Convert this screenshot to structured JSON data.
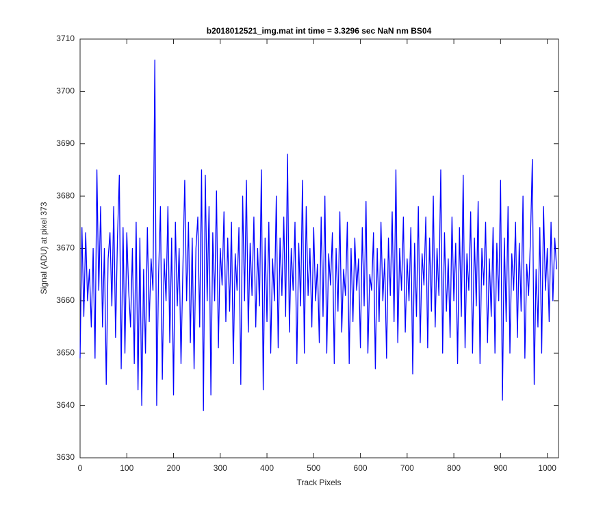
{
  "chart_data": {
    "type": "line",
    "title": "b2018012521_img.mat int time = 3.3296 sec  NaN nm BS04",
    "xlabel": "Track Pixels",
    "ylabel": "Signal (ADU) at pixel 373",
    "color": "#0000ff",
    "xlim": [
      0,
      1024
    ],
    "ylim": [
      3630,
      3710
    ],
    "xticks": [
      0,
      100,
      200,
      300,
      400,
      500,
      600,
      700,
      800,
      900,
      1000
    ],
    "yticks": [
      3630,
      3640,
      3650,
      3660,
      3670,
      3680,
      3690,
      3700,
      3710
    ],
    "x": [
      0,
      4,
      8,
      12,
      16,
      20,
      24,
      28,
      32,
      36,
      40,
      44,
      48,
      52,
      56,
      60,
      64,
      68,
      72,
      76,
      80,
      84,
      88,
      92,
      96,
      100,
      104,
      108,
      112,
      116,
      120,
      124,
      128,
      132,
      136,
      140,
      144,
      148,
      152,
      156,
      160,
      164,
      168,
      172,
      176,
      180,
      184,
      188,
      192,
      196,
      200,
      204,
      208,
      212,
      216,
      220,
      224,
      228,
      232,
      236,
      240,
      244,
      248,
      252,
      256,
      260,
      264,
      268,
      272,
      276,
      280,
      284,
      288,
      292,
      296,
      300,
      304,
      308,
      312,
      316,
      320,
      324,
      328,
      332,
      336,
      340,
      344,
      348,
      352,
      356,
      360,
      364,
      368,
      372,
      376,
      380,
      384,
      388,
      392,
      396,
      400,
      404,
      408,
      412,
      416,
      420,
      424,
      428,
      432,
      436,
      440,
      444,
      448,
      452,
      456,
      460,
      464,
      468,
      472,
      476,
      480,
      484,
      488,
      492,
      496,
      500,
      504,
      508,
      512,
      516,
      520,
      524,
      528,
      532,
      536,
      540,
      544,
      548,
      552,
      556,
      560,
      564,
      568,
      572,
      576,
      580,
      584,
      588,
      592,
      596,
      600,
      604,
      608,
      612,
      616,
      620,
      624,
      628,
      632,
      636,
      640,
      644,
      648,
      652,
      656,
      660,
      664,
      668,
      672,
      676,
      680,
      684,
      688,
      692,
      696,
      700,
      704,
      708,
      712,
      716,
      720,
      724,
      728,
      732,
      736,
      740,
      744,
      748,
      752,
      756,
      760,
      764,
      768,
      772,
      776,
      780,
      784,
      788,
      792,
      796,
      800,
      804,
      808,
      812,
      816,
      820,
      824,
      828,
      832,
      836,
      840,
      844,
      848,
      852,
      856,
      860,
      864,
      868,
      872,
      876,
      880,
      884,
      888,
      892,
      896,
      900,
      904,
      908,
      912,
      916,
      920,
      924,
      928,
      932,
      936,
      940,
      944,
      948,
      952,
      956,
      960,
      964,
      968,
      972,
      976,
      980,
      984,
      988,
      992,
      996,
      1000,
      1004,
      1008,
      1012,
      1016,
      1020
    ],
    "values": [
      3649,
      3674,
      3657,
      3673,
      3660,
      3666,
      3655,
      3670,
      3649,
      3685,
      3662,
      3678,
      3655,
      3670,
      3644,
      3668,
      3673,
      3659,
      3678,
      3653,
      3672,
      3684,
      3647,
      3674,
      3650,
      3673,
      3662,
      3655,
      3670,
      3648,
      3675,
      3643,
      3672,
      3640,
      3666,
      3650,
      3674,
      3656,
      3668,
      3662,
      3706,
      3640,
      3665,
      3678,
      3645,
      3668,
      3660,
      3678,
      3652,
      3672,
      3642,
      3675,
      3659,
      3670,
      3648,
      3666,
      3683,
      3660,
      3675,
      3652,
      3672,
      3647,
      3670,
      3676,
      3655,
      3685,
      3639,
      3684,
      3660,
      3678,
      3642,
      3673,
      3660,
      3681,
      3651,
      3670,
      3663,
      3677,
      3656,
      3672,
      3658,
      3675,
      3648,
      3669,
      3662,
      3674,
      3644,
      3680,
      3660,
      3683,
      3654,
      3671,
      3661,
      3676,
      3655,
      3670,
      3659,
      3685,
      3643,
      3672,
      3656,
      3675,
      3650,
      3668,
      3660,
      3680,
      3651,
      3672,
      3661,
      3676,
      3657,
      3688,
      3654,
      3670,
      3662,
      3675,
      3648,
      3671,
      3659,
      3683,
      3650,
      3678,
      3661,
      3670,
      3655,
      3674,
      3660,
      3667,
      3652,
      3676,
      3657,
      3680,
      3650,
      3669,
      3663,
      3673,
      3648,
      3670,
      3658,
      3677,
      3654,
      3666,
      3661,
      3675,
      3648,
      3670,
      3656,
      3672,
      3662,
      3668,
      3651,
      3674,
      3659,
      3679,
      3650,
      3665,
      3662,
      3673,
      3647,
      3670,
      3656,
      3675,
      3660,
      3668,
      3649,
      3672,
      3661,
      3677,
      3656,
      3685,
      3652,
      3670,
      3662,
      3676,
      3654,
      3668,
      3660,
      3674,
      3646,
      3671,
      3657,
      3678,
      3652,
      3669,
      3663,
      3676,
      3651,
      3672,
      3658,
      3680,
      3655,
      3670,
      3661,
      3685,
      3650,
      3673,
      3658,
      3668,
      3653,
      3676,
      3660,
      3671,
      3648,
      3674,
      3657,
      3684,
      3651,
      3669,
      3662,
      3677,
      3650,
      3672,
      3659,
      3679,
      3648,
      3670,
      3663,
      3675,
      3652,
      3668,
      3657,
      3674,
      3650,
      3671,
      3660,
      3683,
      3641,
      3672,
      3656,
      3678,
      3650,
      3669,
      3662,
      3675,
      3653,
      3671,
      3658,
      3680,
      3649,
      3667,
      3661,
      3672,
      3687,
      3644,
      3666,
      3655,
      3674,
      3650,
      3678,
      3662,
      3670,
      3656,
      3675,
      3660,
      3672,
      3666
    ]
  }
}
